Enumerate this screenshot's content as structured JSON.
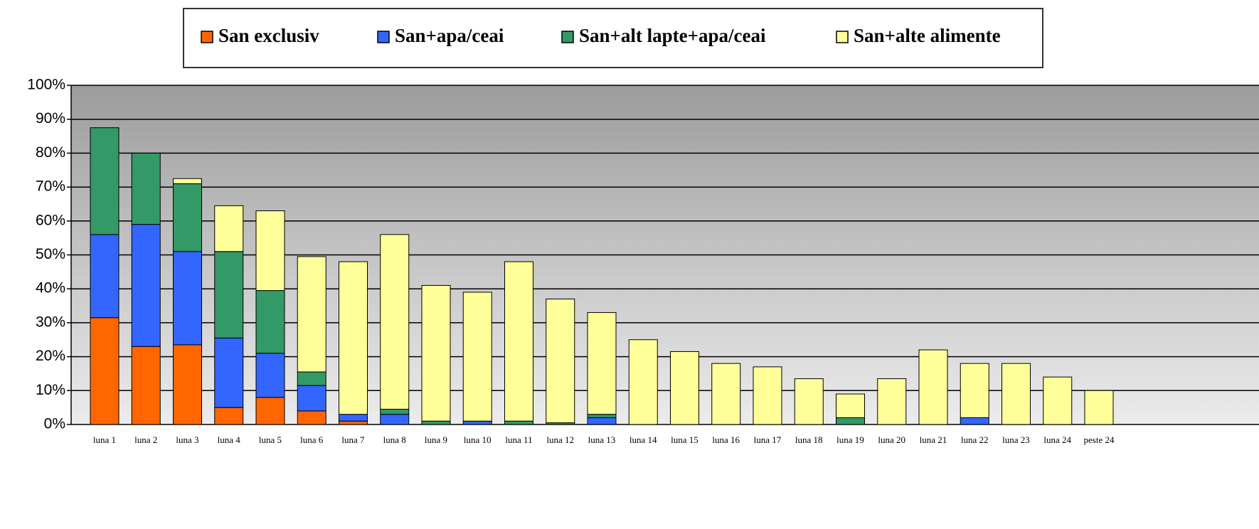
{
  "chart_data": {
    "type": "stacked_bar",
    "categories": [
      "luna 1",
      "luna 2",
      "luna 3",
      "luna 4",
      "luna 5",
      "luna 6",
      "luna 7",
      "luna 8",
      "luna 9",
      "luna 10",
      "luna 11",
      "luna 12",
      "luna 13",
      "luna 14",
      "luna 15",
      "luna 16",
      "luna 17",
      "luna 18",
      "luna 19",
      "luna 20",
      "luna 21",
      "luna 22",
      "luna 23",
      "luna 24",
      "peste 24"
    ],
    "series": [
      {
        "name": "San exclusiv",
        "color": "#ff6600",
        "values": [
          31.5,
          23,
          23.5,
          5,
          8,
          4,
          1,
          0,
          0,
          0,
          0,
          0,
          0,
          0,
          0,
          0,
          0,
          0,
          0,
          0,
          0,
          0,
          0,
          0,
          0
        ]
      },
      {
        "name": "San+apa/ceai",
        "color": "#3366ff",
        "values": [
          24.5,
          36,
          27.5,
          20.5,
          13,
          7.5,
          2,
          3,
          0,
          1,
          0,
          0,
          2,
          0,
          0,
          0,
          0,
          0,
          0,
          0,
          0,
          2,
          0,
          0,
          0
        ]
      },
      {
        "name": "San+alt lapte+apa/ceai",
        "color": "#339966",
        "values": [
          31.5,
          21,
          20,
          25.5,
          18.5,
          4,
          0,
          1.5,
          1,
          0,
          1,
          0.5,
          1,
          0,
          0,
          0,
          0,
          0,
          2,
          0,
          0,
          0,
          0,
          0,
          0
        ]
      },
      {
        "name": "San+alte alimente",
        "color": "#ffff99",
        "values": [
          0,
          0,
          1.5,
          13.5,
          23.5,
          34,
          45,
          51.5,
          40,
          38,
          47,
          36.5,
          30,
          25,
          21.5,
          18,
          17,
          13.5,
          7,
          13.5,
          22,
          16,
          18,
          14,
          10
        ]
      }
    ],
    "ylim": [
      0,
      100
    ],
    "yticks": [
      {
        "value": 0,
        "label": "0%"
      },
      {
        "value": 10,
        "label": "10%"
      },
      {
        "value": 20,
        "label": "20%"
      },
      {
        "value": 30,
        "label": "30%"
      },
      {
        "value": 40,
        "label": "40%"
      },
      {
        "value": 50,
        "label": "50%"
      },
      {
        "value": 60,
        "label": "60%"
      },
      {
        "value": 70,
        "label": "70%"
      },
      {
        "value": 80,
        "label": "80%"
      },
      {
        "value": 90,
        "label": "90%"
      },
      {
        "value": 100,
        "label": "100%"
      }
    ],
    "grid": true,
    "legend": "top"
  }
}
